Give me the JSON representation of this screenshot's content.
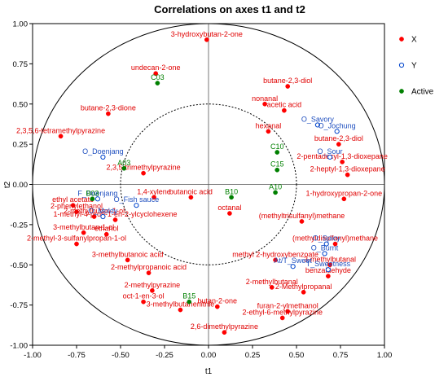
{
  "chart_data": {
    "type": "scatter",
    "title": "Correlations on axes t1 and t2",
    "xlabel": "t1",
    "ylabel": "t2",
    "xlim": [
      -1,
      1
    ],
    "ylim": [
      -1,
      1
    ],
    "xticks": [
      "-1.00",
      "-0.75",
      "-0.50",
      "-0.25",
      "0.00",
      "0.25",
      "0.50",
      "0.75",
      "1.00"
    ],
    "yticks": [
      "1.00",
      "0.75",
      "0.50",
      "0.25",
      "0.00",
      "-0.25",
      "-0.50",
      "-0.75",
      "-1.00"
    ],
    "grid": false,
    "legend_position": "right",
    "circles": [
      1.0,
      0.5
    ],
    "colors": {
      "X": "#ff0000",
      "Y": "#0044cc",
      "Active": "#008000",
      "label_X": "#e00000",
      "label_Y": "#1f4fbf",
      "label_Active": "#008000"
    },
    "series": [
      {
        "name": "X",
        "points": [
          {
            "label": "3-hydroxybutan-2-one",
            "x": -0.01,
            "y": 0.9
          },
          {
            "label": "undecan-2-one",
            "x": -0.3,
            "y": 0.69
          },
          {
            "label": "butane-2,3-diol",
            "x": 0.45,
            "y": 0.61
          },
          {
            "label": "nonanal",
            "x": 0.32,
            "y": 0.5
          },
          {
            "label": "acetic acid",
            "x": 0.43,
            "y": 0.46
          },
          {
            "label": "butane-2,3-dione",
            "x": -0.57,
            "y": 0.44
          },
          {
            "label": "hexanal",
            "x": 0.34,
            "y": 0.33
          },
          {
            "label": "butane-2,3-diol",
            "x": 0.74,
            "y": 0.25
          },
          {
            "label": "2,3,5,6-tetramethylpyrazine",
            "x": -0.84,
            "y": 0.3
          },
          {
            "label": "2-pentadecyl-1,3-dioxepane",
            "x": 0.76,
            "y": 0.14
          },
          {
            "label": "2-heptyl-1,3-dioxepane",
            "x": 0.79,
            "y": 0.06
          },
          {
            "label": "2,3,5-trimethylpyrazine",
            "x": -0.37,
            "y": 0.07
          },
          {
            "label": "1,4-xylene",
            "x": -0.31,
            "y": -0.08
          },
          {
            "label": "butanoic acid",
            "x": -0.1,
            "y": -0.08
          },
          {
            "label": "1-hydroxypropan-2-one",
            "x": 0.77,
            "y": -0.09
          },
          {
            "label": "ethyl acetate",
            "x": -0.77,
            "y": -0.13
          },
          {
            "label": "2-phenylethanol",
            "x": -0.75,
            "y": -0.17
          },
          {
            "label": "2-methylbutan-1-ol",
            "x": -0.65,
            "y": -0.2
          },
          {
            "label": "1-methyl-4-prop-1-en-2-ylcyclohexene",
            "x": -0.53,
            "y": -0.22
          },
          {
            "label": "octanal",
            "x": 0.12,
            "y": -0.18
          },
          {
            "label": "(methyltrisulfanyl)methane",
            "x": 0.53,
            "y": -0.23
          },
          {
            "label": "3-methylbutan-1-ol",
            "x": -0.71,
            "y": -0.3
          },
          {
            "label": "ethanol",
            "x": -0.58,
            "y": -0.31
          },
          {
            "label": "2-methyl-3-sulfanylpropan-1-ol",
            "x": -0.75,
            "y": -0.37
          },
          {
            "label": "(methyldisulfanyl)methane",
            "x": 0.72,
            "y": -0.37
          },
          {
            "label": "3-methylbutanoic acid",
            "x": -0.46,
            "y": -0.47
          },
          {
            "label": "methyl 2-hydroxybenzoate",
            "x": 0.38,
            "y": -0.47
          },
          {
            "label": "3-methylbutanal",
            "x": 0.69,
            "y": -0.5
          },
          {
            "label": "2-methylpropanoic acid",
            "x": -0.34,
            "y": -0.55
          },
          {
            "label": "2-methylbutanal",
            "x": 0.36,
            "y": -0.64
          },
          {
            "label": "benzaldehyde",
            "x": 0.68,
            "y": -0.57
          },
          {
            "label": "2-methylpyrazine",
            "x": -0.32,
            "y": -0.66
          },
          {
            "label": "2-Methylpropanal",
            "x": 0.54,
            "y": -0.67
          },
          {
            "label": "oct-1-en-3-ol",
            "x": -0.37,
            "y": -0.73
          },
          {
            "label": "butan-2-one",
            "x": 0.05,
            "y": -0.76
          },
          {
            "label": "3-methylbutanenitrile",
            "x": -0.16,
            "y": -0.78
          },
          {
            "label": "furan-2-ylmethanol",
            "x": 0.45,
            "y": -0.79
          },
          {
            "label": "2-ethyl-6-methylpyrazine",
            "x": 0.42,
            "y": -0.83
          },
          {
            "label": "2,6-dimethylpyrazine",
            "x": 0.09,
            "y": -0.92
          }
        ]
      },
      {
        "name": "Y",
        "points": [
          {
            "label": "O_Savory",
            "x": 0.62,
            "y": 0.37
          },
          {
            "label": "O_Jochung",
            "x": 0.73,
            "y": 0.33
          },
          {
            "label": "O_Doenjang",
            "x": -0.6,
            "y": 0.17
          },
          {
            "label": "O_Sour",
            "x": 0.69,
            "y": 0.17
          },
          {
            "label": "F_Doenjang",
            "x": -0.63,
            "y": -0.09
          },
          {
            "label": "O_Fish sauce",
            "x": -0.41,
            "y": -0.13
          },
          {
            "label": "O_Moldy",
            "x": -0.6,
            "y": -0.2
          },
          {
            "label": "O_Spicy",
            "x": 0.67,
            "y": -0.37
          },
          {
            "label": "O_Burnt",
            "x": 0.66,
            "y": -0.43
          },
          {
            "label": "At/T_Sweet",
            "x": 0.48,
            "y": -0.51
          },
          {
            "label": "T_Sweetness",
            "x": 0.68,
            "y": -0.53
          }
        ]
      },
      {
        "name": "Active",
        "points": [
          {
            "label": "C03",
            "x": -0.29,
            "y": 0.63
          },
          {
            "label": "A03",
            "x": -0.48,
            "y": 0.1
          },
          {
            "label": "C10",
            "x": 0.39,
            "y": 0.2
          },
          {
            "label": "C15",
            "x": 0.39,
            "y": 0.09
          },
          {
            "label": "B03",
            "x": -0.66,
            "y": -0.09
          },
          {
            "label": "B10",
            "x": 0.13,
            "y": -0.08
          },
          {
            "label": "A10",
            "x": 0.38,
            "y": -0.05
          },
          {
            "label": "B15",
            "x": -0.11,
            "y": -0.73
          }
        ]
      }
    ]
  }
}
